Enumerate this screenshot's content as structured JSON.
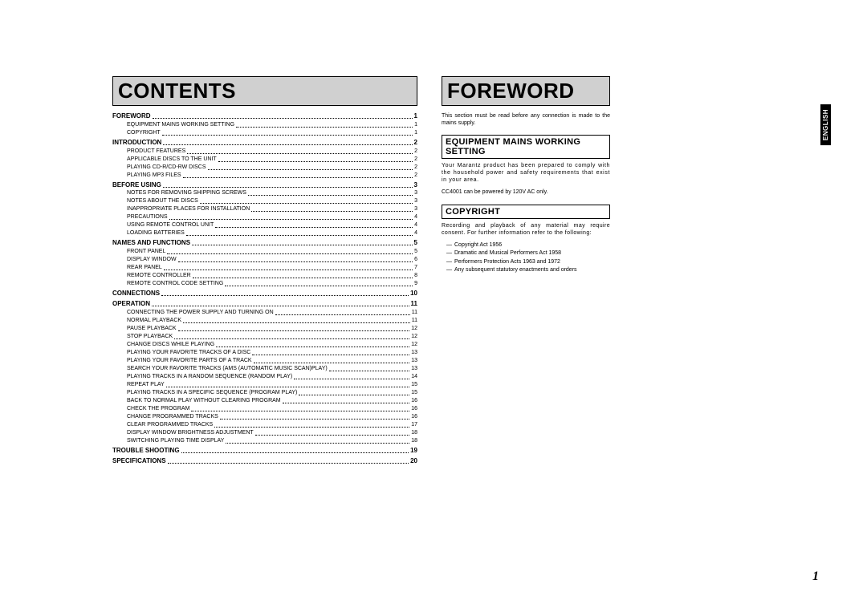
{
  "sideTab": "ENGLISH",
  "pageNumber": "1",
  "contents": {
    "title": "CONTENTS",
    "sections": [
      {
        "label": "FOREWORD",
        "page": "1",
        "items": [
          {
            "label": "EQUIPMENT MAINS WORKING SETTING",
            "page": "1"
          },
          {
            "label": "COPYRIGHT",
            "page": "1"
          }
        ]
      },
      {
        "label": "INTRODUCTION",
        "page": "2",
        "items": [
          {
            "label": "PRODUCT FEATURES",
            "page": "2"
          },
          {
            "label": "APPLICABLE DISCS TO THE UNIT",
            "page": "2"
          },
          {
            "label": "PLAYING CD-R/CD-RW DISCS",
            "page": "2"
          },
          {
            "label": "PLAYING MP3 FILES",
            "page": "2"
          }
        ]
      },
      {
        "label": "BEFORE USING",
        "page": "3",
        "items": [
          {
            "label": "NOTES FOR REMOVING SHIPPING SCREWS",
            "page": "3"
          },
          {
            "label": "NOTES ABOUT THE DISCS",
            "page": "3"
          },
          {
            "label": "INAPPROPRIATE PLACES FOR INSTALLATION",
            "page": "3"
          },
          {
            "label": "PRECAUTIONS",
            "page": "4"
          },
          {
            "label": "USING REMOTE CONTROL UNIT",
            "page": "4"
          },
          {
            "label": "LOADING BATTERIES",
            "page": "4"
          }
        ]
      },
      {
        "label": "NAMES AND FUNCTIONS",
        "page": "5",
        "items": [
          {
            "label": "FRONT PANEL",
            "page": "5"
          },
          {
            "label": "DISPLAY WINDOW",
            "page": "6"
          },
          {
            "label": "REAR PANEL",
            "page": "7"
          },
          {
            "label": "REMOTE CONTROLLER",
            "page": "8"
          },
          {
            "label": "REMOTE CONTROL CODE SETTING",
            "page": "9"
          }
        ]
      },
      {
        "label": "CONNECTIONS",
        "page": "10",
        "items": []
      },
      {
        "label": "OPERATION",
        "page": "11",
        "items": [
          {
            "label": "CONNECTING THE POWER SUPPLY AND TURNING ON",
            "page": "11"
          },
          {
            "label": "NORMAL PLAYBACK",
            "page": "11"
          },
          {
            "label": "PAUSE PLAYBACK",
            "page": "12"
          },
          {
            "label": "STOP PLAYBACK",
            "page": "12"
          },
          {
            "label": "CHANGE DISCS WHILE PLAYING",
            "page": "12"
          },
          {
            "label": "PLAYING YOUR FAVORITE TRACKS OF A DISC",
            "page": "13"
          },
          {
            "label": "PLAYING YOUR FAVORITE PARTS OF A TRACK",
            "page": "13"
          },
          {
            "label": "SEARCH YOUR FAVORITE TRACKS (AMS (AUTOMATIC MUSIC SCAN)PLAY)",
            "page": "13"
          },
          {
            "label": "PLAYING TRACKS IN A RANDOM SEQUENCE (RANDOM PLAY)",
            "page": "14"
          },
          {
            "label": "REPEAT PLAY",
            "page": "15"
          },
          {
            "label": "PLAYING TRACKS IN A SPECIFIC SEQUENCE (PROGRAM PLAY)",
            "page": "15"
          },
          {
            "label": "BACK TO NORMAL PLAY WITHOUT CLEARING PROGRAM",
            "page": "16"
          },
          {
            "label": "CHECK THE PROGRAM",
            "page": "16"
          },
          {
            "label": "CHANGE PROGRAMMED TRACKS",
            "page": "16"
          },
          {
            "label": "CLEAR PROGRAMMED TRACKS",
            "page": "17"
          },
          {
            "label": "DISPLAY WINDOW BRIGHTNESS ADJUSTMENT",
            "page": "18"
          },
          {
            "label": "SWITCHING PLAYING TIME DISPLAY",
            "page": "18"
          }
        ]
      },
      {
        "label": "TROUBLE SHOOTING",
        "page": "19",
        "items": []
      },
      {
        "label": "SPECIFICATIONS",
        "page": "20",
        "items": []
      }
    ]
  },
  "foreword": {
    "title": "FOREWORD",
    "intro": "This section must be read before any connection is made to the mains supply.",
    "mains": {
      "heading": "EQUIPMENT MAINS WORKING SETTING",
      "body1": "Your Marantz product has been prepared to comply with the household power and safety requirements that exist in your area.",
      "body2": "CC4001 can be powered by 120V AC only."
    },
    "copyright": {
      "heading": "COPYRIGHT",
      "body": "Recording and playback of any material may require consent. For further information refer to the following:",
      "list": [
        "Copyright Act 1956",
        "Dramatic and Musical Performers Act 1958",
        "Performers Protection Acts 1963 and 1972",
        "Any subsequent statutory enactments and orders"
      ]
    }
  }
}
